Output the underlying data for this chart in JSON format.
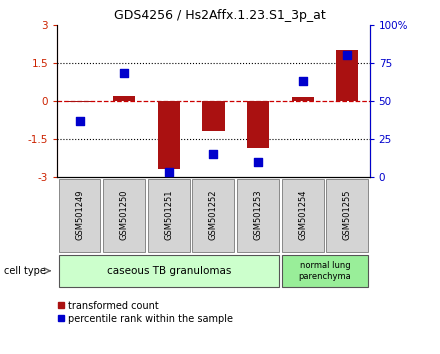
{
  "title": "GDS4256 / Hs2Affx.1.23.S1_3p_at",
  "samples": [
    "GSM501249",
    "GSM501250",
    "GSM501251",
    "GSM501252",
    "GSM501253",
    "GSM501254",
    "GSM501255"
  ],
  "transformed_count": [
    -0.05,
    0.2,
    -2.7,
    -1.2,
    -1.85,
    0.15,
    2.0
  ],
  "percentile_rank": [
    37,
    68,
    3,
    15,
    10,
    63,
    80
  ],
  "ylim_left": [
    -3,
    3
  ],
  "ylim_right": [
    0,
    100
  ],
  "yticks_left": [
    -3,
    -1.5,
    0,
    1.5,
    3
  ],
  "yticks_right": [
    0,
    25,
    50,
    75,
    100
  ],
  "ytick_labels_right": [
    "0",
    "25",
    "50",
    "75",
    "100%"
  ],
  "bar_color": "#aa1111",
  "scatter_color": "#0000cc",
  "zero_line_color": "#cc0000",
  "dotted_line_color": "#333333",
  "n_group1": 5,
  "n_group2": 2,
  "group1_label": "caseous TB granulomas",
  "group2_label": "normal lung\nparenchyma",
  "group1_color": "#ccffcc",
  "group2_color": "#99ee99",
  "cell_type_label": "cell type",
  "legend_red_label": "transformed count",
  "legend_blue_label": "percentile rank within the sample",
  "bar_width": 0.5,
  "scatter_size": 35,
  "box_facecolor": "#d4d4d4",
  "box_edgecolor": "#888888"
}
